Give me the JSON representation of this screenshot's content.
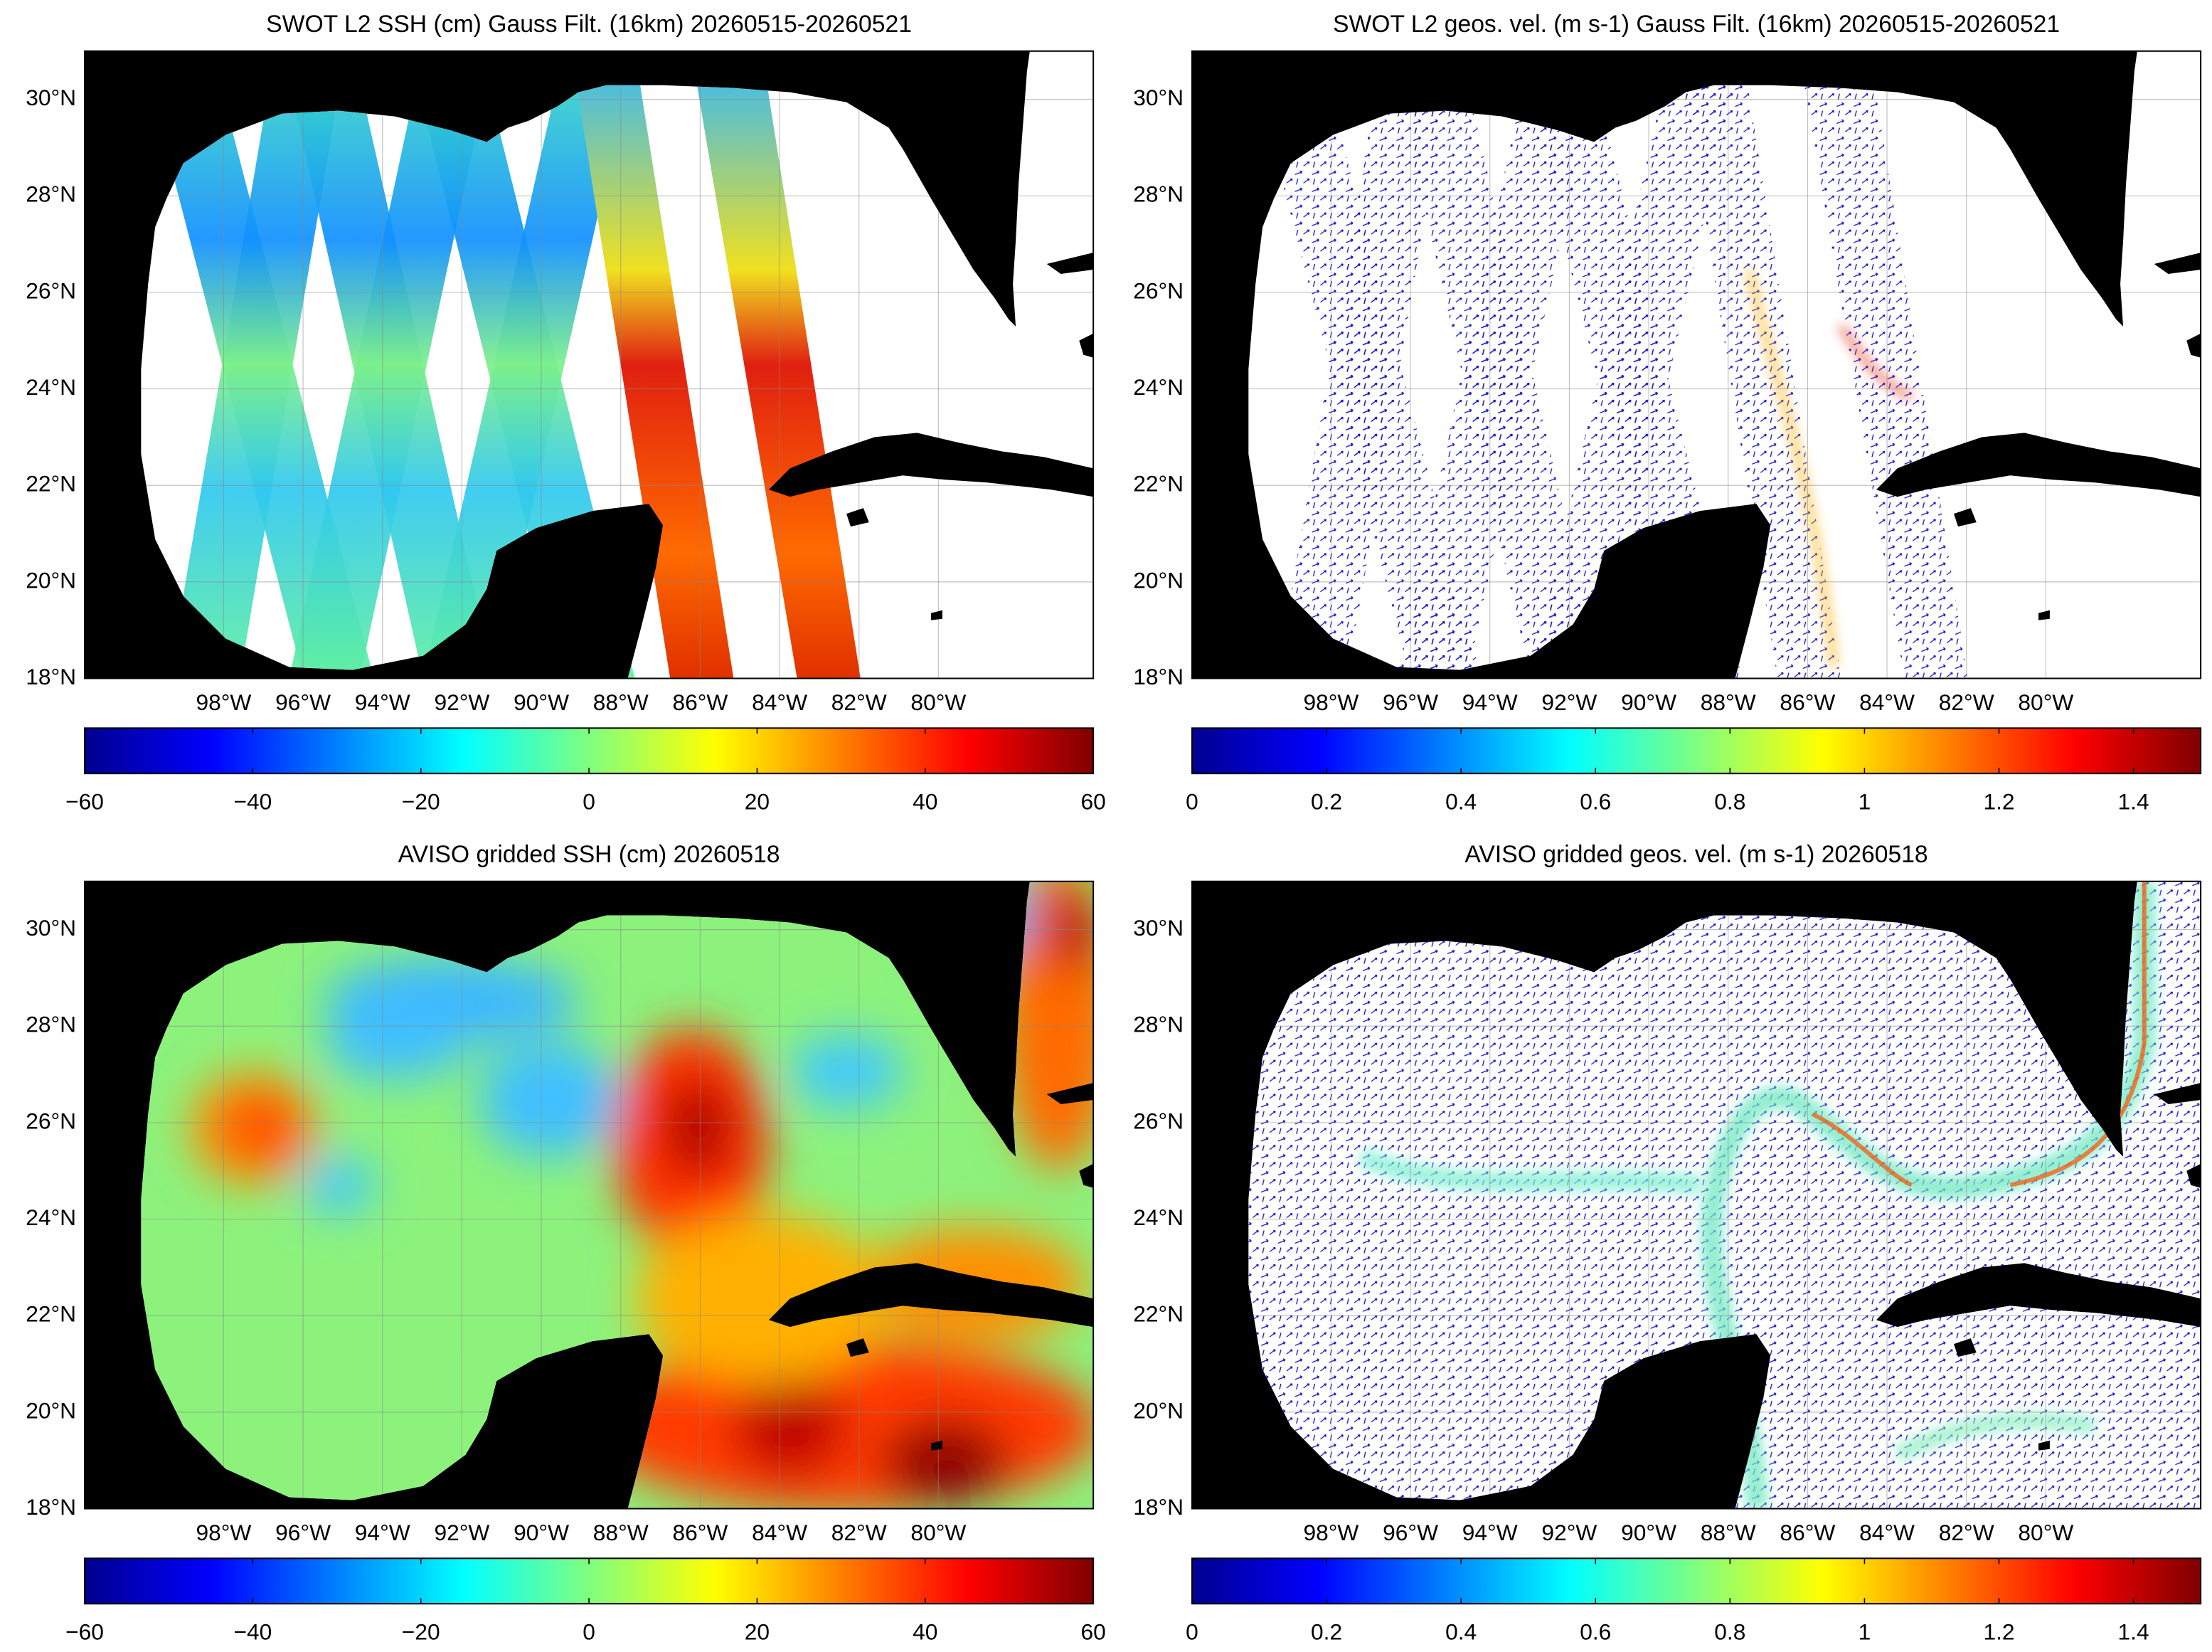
{
  "chart_data": [
    {
      "type": "map",
      "field": "ssh",
      "product": "swath",
      "title": "SWOT L2 SSH (cm) Gauss Filt. (16km) 20260515-20260521",
      "xlim": [
        -101.5,
        -76.1
      ],
      "ylim": [
        18,
        31
      ],
      "xticks": [
        {
          "value": -98,
          "label": "98°W"
        },
        {
          "value": -96,
          "label": "96°W"
        },
        {
          "value": -94,
          "label": "94°W"
        },
        {
          "value": -92,
          "label": "92°W"
        },
        {
          "value": -90,
          "label": "90°W"
        },
        {
          "value": -88,
          "label": "88°W"
        },
        {
          "value": -86,
          "label": "86°W"
        },
        {
          "value": -84,
          "label": "84°W"
        },
        {
          "value": -82,
          "label": "82°W"
        },
        {
          "value": -80,
          "label": "80°W"
        }
      ],
      "yticks": [
        {
          "value": 18,
          "label": "18°N"
        },
        {
          "value": 20,
          "label": "20°N"
        },
        {
          "value": 22,
          "label": "22°N"
        },
        {
          "value": 24,
          "label": "24°N"
        },
        {
          "value": 26,
          "label": "26°N"
        },
        {
          "value": 28,
          "label": "28°N"
        },
        {
          "value": 30,
          "label": "30°N"
        }
      ],
      "colorbar": {
        "lim": [
          -60,
          60
        ],
        "ticks": [
          {
            "value": -60,
            "label": "−60"
          },
          {
            "value": -40,
            "label": "−40"
          },
          {
            "value": -20,
            "label": "−20"
          },
          0,
          20,
          40,
          60
        ],
        "colormap": "jet"
      }
    },
    {
      "type": "map",
      "field": "velocity",
      "product": "swath",
      "title": "SWOT L2 geos. vel. (m s-1) Gauss Filt. (16km) 20260515-20260521",
      "xlim": [
        -101.5,
        -76.1
      ],
      "ylim": [
        18,
        31
      ],
      "xticks": [
        {
          "value": -98,
          "label": "98°W"
        },
        {
          "value": -96,
          "label": "96°W"
        },
        {
          "value": -94,
          "label": "94°W"
        },
        {
          "value": -92,
          "label": "92°W"
        },
        {
          "value": -90,
          "label": "90°W"
        },
        {
          "value": -88,
          "label": "88°W"
        },
        {
          "value": -86,
          "label": "86°W"
        },
        {
          "value": -84,
          "label": "84°W"
        },
        {
          "value": -82,
          "label": "82°W"
        },
        {
          "value": -80,
          "label": "80°W"
        }
      ],
      "yticks": [
        {
          "value": 18,
          "label": "18°N"
        },
        {
          "value": 20,
          "label": "20°N"
        },
        {
          "value": 22,
          "label": "22°N"
        },
        {
          "value": 24,
          "label": "24°N"
        },
        {
          "value": 26,
          "label": "26°N"
        },
        {
          "value": 28,
          "label": "28°N"
        },
        {
          "value": 30,
          "label": "30°N"
        }
      ],
      "colorbar": {
        "lim": [
          0,
          1.5
        ],
        "ticks": [
          0,
          0.2,
          0.4,
          0.6,
          0.8,
          1,
          1.2,
          1.4
        ],
        "colormap": "jet"
      }
    },
    {
      "type": "map",
      "field": "ssh",
      "product": "gridded",
      "title": "AVISO gridded SSH (cm) 20260518",
      "xlim": [
        -101.5,
        -76.1
      ],
      "ylim": [
        18,
        31
      ],
      "xticks": [
        {
          "value": -98,
          "label": "98°W"
        },
        {
          "value": -96,
          "label": "96°W"
        },
        {
          "value": -94,
          "label": "94°W"
        },
        {
          "value": -92,
          "label": "92°W"
        },
        {
          "value": -90,
          "label": "90°W"
        },
        {
          "value": -88,
          "label": "88°W"
        },
        {
          "value": -86,
          "label": "86°W"
        },
        {
          "value": -84,
          "label": "84°W"
        },
        {
          "value": -82,
          "label": "82°W"
        },
        {
          "value": -80,
          "label": "80°W"
        }
      ],
      "yticks": [
        {
          "value": 18,
          "label": "18°N"
        },
        {
          "value": 20,
          "label": "20°N"
        },
        {
          "value": 22,
          "label": "22°N"
        },
        {
          "value": 24,
          "label": "24°N"
        },
        {
          "value": 26,
          "label": "26°N"
        },
        {
          "value": 28,
          "label": "28°N"
        },
        {
          "value": 30,
          "label": "30°N"
        }
      ],
      "colorbar": {
        "lim": [
          -60,
          60
        ],
        "ticks": [
          {
            "value": -60,
            "label": "−60"
          },
          {
            "value": -40,
            "label": "−40"
          },
          {
            "value": -20,
            "label": "−20"
          },
          0,
          20,
          40,
          60
        ],
        "colormap": "jet"
      }
    },
    {
      "type": "map",
      "field": "velocity",
      "product": "gridded",
      "title": "AVISO gridded geos. vel. (m s-1)  20260518",
      "xlim": [
        -101.5,
        -76.1
      ],
      "ylim": [
        18,
        31
      ],
      "xticks": [
        {
          "value": -98,
          "label": "98°W"
        },
        {
          "value": -96,
          "label": "96°W"
        },
        {
          "value": -94,
          "label": "94°W"
        },
        {
          "value": -92,
          "label": "92°W"
        },
        {
          "value": -90,
          "label": "90°W"
        },
        {
          "value": -88,
          "label": "88°W"
        },
        {
          "value": -86,
          "label": "86°W"
        },
        {
          "value": -84,
          "label": "84°W"
        },
        {
          "value": -82,
          "label": "82°W"
        },
        {
          "value": -80,
          "label": "80°W"
        }
      ],
      "yticks": [
        {
          "value": 18,
          "label": "18°N"
        },
        {
          "value": 20,
          "label": "20°N"
        },
        {
          "value": 22,
          "label": "22°N"
        },
        {
          "value": 24,
          "label": "24°N"
        },
        {
          "value": 26,
          "label": "26°N"
        },
        {
          "value": 28,
          "label": "28°N"
        },
        {
          "value": 30,
          "label": "30°N"
        }
      ],
      "colorbar": {
        "lim": [
          0,
          1.5
        ],
        "ticks": [
          0,
          0.2,
          0.4,
          0.6,
          0.8,
          1,
          1.2,
          1.4
        ],
        "colormap": "jet"
      }
    }
  ]
}
